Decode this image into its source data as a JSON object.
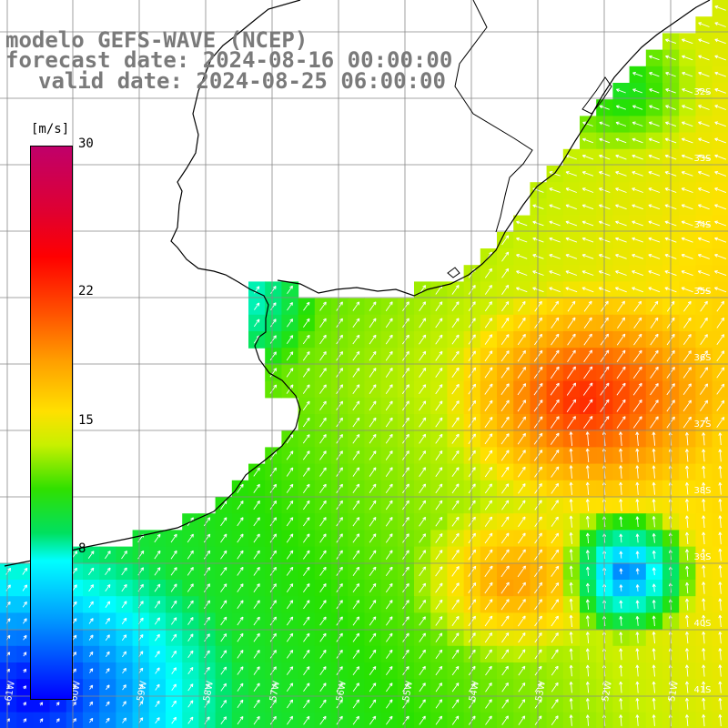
{
  "header": {
    "line1": "modelo GEFS-WAVE (NCEP)",
    "line2": "forecast date: 2024-08-16 00:00:00",
    "line3": "valid date: 2024-08-25 06:00:00"
  },
  "colorbar": {
    "unit": "[m/s]",
    "ticks": [
      {
        "label": "30",
        "value": 30
      },
      {
        "label": "22",
        "value": 22
      },
      {
        "label": "15",
        "value": 15
      },
      {
        "label": "8",
        "value": 8
      }
    ]
  },
  "lat_labels": [
    "32S",
    "33S",
    "34S",
    "35S",
    "36S",
    "37S",
    "38S",
    "39S",
    "40S",
    "41S"
  ],
  "lon_labels": [
    "61W",
    "60W",
    "59W",
    "58W",
    "57W",
    "56W",
    "55W",
    "54W",
    "53W",
    "52W",
    "51W"
  ],
  "colors": {
    "grid": "#888888",
    "coast": "#000000",
    "arrow": "#ffffff",
    "title": "#7a7a7a"
  }
}
